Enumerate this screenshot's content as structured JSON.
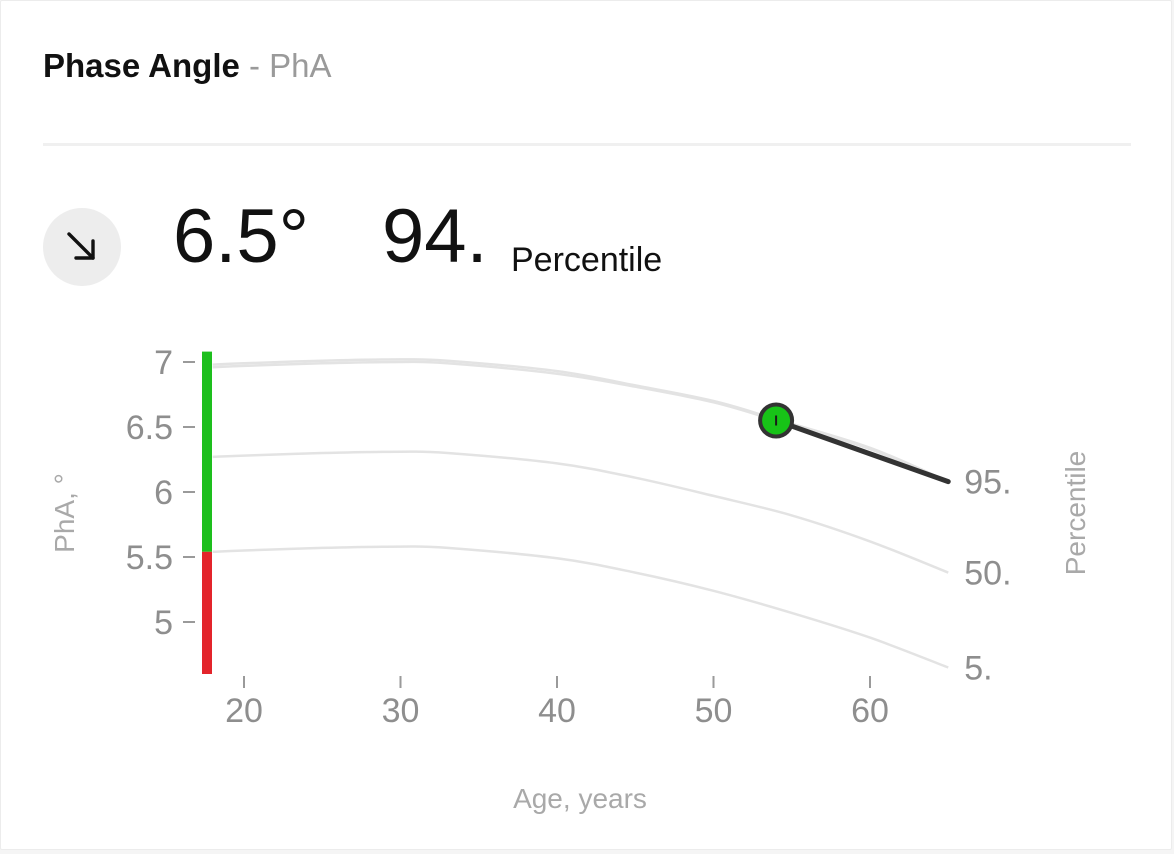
{
  "header": {
    "title": "Phase Angle",
    "subtitle": "- PhA"
  },
  "summary": {
    "trend_icon": "arrow-down-right-icon",
    "value": "6.5°",
    "percentile_value": "94.",
    "percentile_label": "Percentile"
  },
  "colors": {
    "healthy": "#1dbf1d",
    "risk": "#e3242b",
    "reference_curve": "#e3e3e3",
    "trend_line": "#333333",
    "marker_fill": "#17c317"
  },
  "chart_data": {
    "type": "line",
    "xlabel": "Age, years",
    "ylabel": "PhA, °",
    "y2label": "Percentile",
    "xlim": [
      17,
      65
    ],
    "ylim": [
      4.6,
      7.1
    ],
    "x_ticks": [
      20,
      30,
      40,
      50,
      60
    ],
    "y_ticks": [
      5,
      5.5,
      6,
      6.5,
      7
    ],
    "y_tick_labels": [
      "5",
      "5.5",
      "6",
      "6.5",
      "7"
    ],
    "x_tick_labels": [
      "20",
      "30",
      "40",
      "50",
      "60"
    ],
    "grid": false,
    "reference_curves": [
      {
        "name": "95.",
        "x": [
          18,
          20,
          25,
          30,
          33,
          40,
          45,
          50,
          54,
          60,
          65
        ],
        "y": [
          6.98,
          6.99,
          7.01,
          7.02,
          7.01,
          6.93,
          6.82,
          6.7,
          6.56,
          6.34,
          6.08
        ]
      },
      {
        "name": "",
        "x": [
          18,
          20,
          25,
          30,
          33,
          40,
          45,
          50,
          54,
          60,
          65
        ],
        "y": [
          6.96,
          6.97,
          6.99,
          7.0,
          6.99,
          6.91,
          6.81,
          6.69,
          6.55,
          6.33,
          6.07
        ]
      },
      {
        "name": "50.",
        "x": [
          18,
          20,
          25,
          30,
          33,
          40,
          45,
          50,
          55,
          60,
          65
        ],
        "y": [
          6.27,
          6.28,
          6.3,
          6.31,
          6.3,
          6.22,
          6.11,
          5.97,
          5.82,
          5.62,
          5.38
        ]
      },
      {
        "name": "5.",
        "x": [
          18,
          20,
          25,
          30,
          33,
          40,
          45,
          50,
          55,
          60,
          65
        ],
        "y": [
          5.54,
          5.55,
          5.57,
          5.58,
          5.57,
          5.49,
          5.38,
          5.24,
          5.07,
          4.88,
          4.65
        ]
      }
    ],
    "reference_band": [
      {
        "label": "healthy",
        "from": 5.54,
        "to": 7.08
      },
      {
        "label": "risk",
        "from": 4.6,
        "to": 5.54
      }
    ],
    "trend": {
      "x": [
        54,
        65
      ],
      "y": [
        6.55,
        6.08
      ]
    },
    "current_point": {
      "x": 54,
      "y": 6.55
    }
  }
}
